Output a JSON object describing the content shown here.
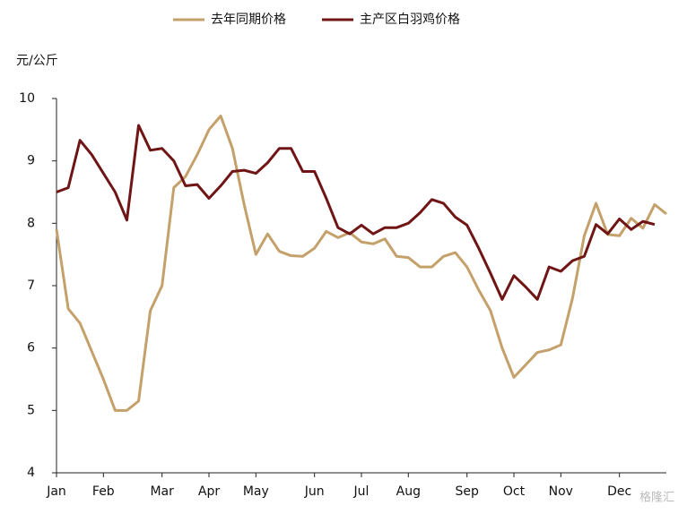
{
  "chart_data": {
    "type": "line",
    "y_label": "元/公斤",
    "watermark": "格隆汇",
    "categories": [
      "Jan",
      null,
      null,
      null,
      "Feb",
      null,
      null,
      null,
      null,
      "Mar",
      null,
      null,
      null,
      "Apr",
      null,
      null,
      null,
      "May",
      null,
      null,
      null,
      null,
      "Jun",
      null,
      null,
      null,
      "Jul",
      null,
      null,
      null,
      "Aug",
      null,
      null,
      null,
      null,
      "Sep",
      null,
      null,
      null,
      "Oct",
      null,
      null,
      null,
      "Nov",
      null,
      null,
      null,
      null,
      "Dec",
      null,
      null,
      null,
      null
    ],
    "series": [
      {
        "name": "去年同期价格",
        "color": "#c4a06a",
        "values": [
          7.9,
          6.63,
          6.4,
          5.95,
          5.5,
          5.0,
          5.0,
          5.15,
          6.6,
          7.0,
          8.57,
          8.75,
          9.1,
          9.5,
          9.72,
          9.2,
          8.3,
          7.5,
          7.83,
          7.55,
          7.48,
          7.47,
          7.6,
          7.87,
          7.77,
          7.85,
          7.7,
          7.67,
          7.75,
          7.47,
          7.45,
          7.3,
          7.3,
          7.47,
          7.53,
          7.3,
          6.93,
          6.6,
          6.0,
          5.53,
          5.73,
          5.93,
          5.97,
          6.05,
          6.8,
          7.8,
          8.32,
          7.82,
          7.8,
          8.08,
          7.92,
          8.3,
          8.15
        ]
      },
      {
        "name": "主产区白羽鸡价格",
        "color": "#701515",
        "values": [
          8.5,
          8.57,
          9.33,
          9.1,
          8.8,
          8.5,
          8.05,
          9.57,
          9.17,
          9.2,
          9.0,
          8.6,
          8.62,
          8.4,
          8.6,
          8.83,
          8.85,
          8.8,
          8.97,
          9.2,
          9.2,
          8.83,
          8.83,
          8.4,
          7.93,
          7.83,
          7.97,
          7.83,
          7.93,
          7.93,
          8.0,
          8.17,
          8.38,
          8.32,
          8.1,
          7.97,
          7.6,
          7.2,
          6.78,
          7.16,
          6.98,
          6.78,
          7.3,
          7.23,
          7.4,
          7.47,
          7.98,
          7.83,
          8.07,
          7.9,
          8.03,
          7.98,
          null
        ]
      }
    ],
    "ylim": [
      4,
      10
    ],
    "yticks": [
      4,
      5,
      6,
      7,
      8,
      9,
      10
    ]
  }
}
